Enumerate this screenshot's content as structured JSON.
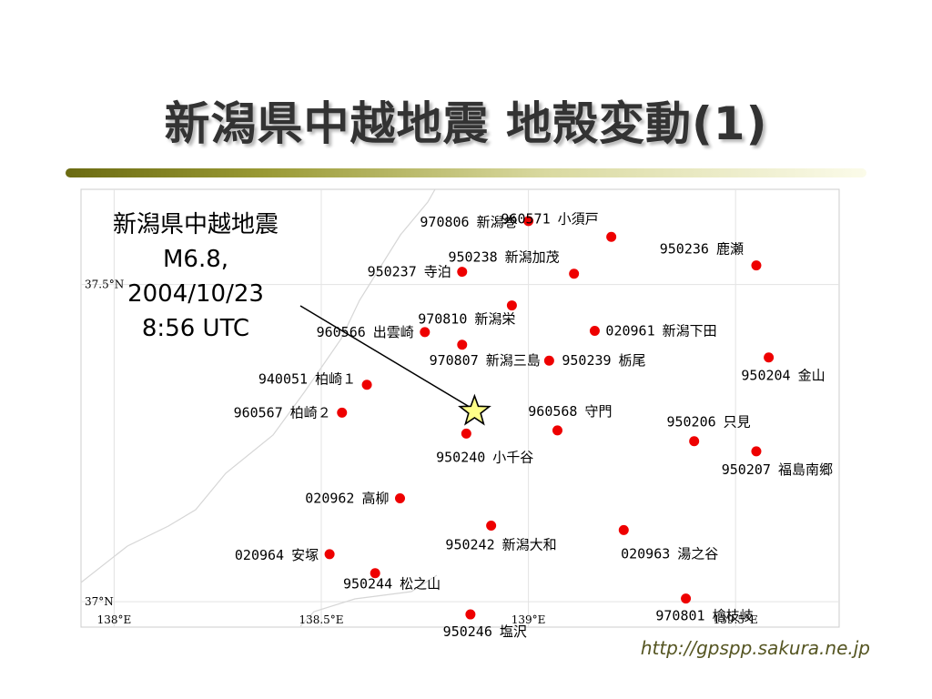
{
  "slide": {
    "title": "新潟県中越地震 地殻変動(1)",
    "source_url": "http://gpspp.sakura.ne.jp"
  },
  "quake": {
    "name": "新潟県中越地震",
    "magnitude": "M6.8,",
    "date": "2004/10/23",
    "time": "8:56 UTC",
    "lon": 138.87,
    "lat": 37.3
  },
  "map": {
    "lon_range": [
      137.92,
      139.75
    ],
    "lat_range": [
      36.96,
      37.65
    ],
    "lon_ticks": [
      {
        "value": 138.0,
        "label": "138°E"
      },
      {
        "value": 138.5,
        "label": "138.5°E"
      },
      {
        "value": 139.0,
        "label": "139°E"
      },
      {
        "value": 139.5,
        "label": "139.5°E"
      }
    ],
    "lat_ticks": [
      {
        "value": 37.5,
        "label": "37.5°N"
      },
      {
        "value": 37.0,
        "label": "37°N"
      }
    ],
    "colors": {
      "station": "#ee0000",
      "epicenter_fill": "#ffff88",
      "epicenter_stroke": "#000000"
    },
    "epicenter_icon": "star-icon"
  },
  "stations": [
    {
      "code": "970806",
      "name": "新潟巻",
      "lon": 139.0,
      "lat": 37.6
    },
    {
      "code": "960571",
      "name": "小須戸",
      "lon": 139.2,
      "lat": 37.575
    },
    {
      "code": "950236",
      "name": "鹿瀬",
      "lon": 139.55,
      "lat": 37.53
    },
    {
      "code": "950237",
      "name": "寺泊",
      "lon": 138.84,
      "lat": 37.52
    },
    {
      "code": "950238",
      "name": "新潟加茂",
      "lon": 139.11,
      "lat": 37.517
    },
    {
      "code": "970810",
      "name": "新潟栄",
      "lon": 138.96,
      "lat": 37.467
    },
    {
      "code": "960566",
      "name": "出雲崎",
      "lon": 138.75,
      "lat": 37.425
    },
    {
      "code": "020961",
      "name": "新潟下田",
      "lon": 139.16,
      "lat": 37.427
    },
    {
      "code": "970807",
      "name": "新潟三島",
      "lon": 138.84,
      "lat": 37.405
    },
    {
      "code": "950239",
      "name": "栃尾",
      "lon": 139.05,
      "lat": 37.38
    },
    {
      "code": "950204",
      "name": "金山",
      "lon": 139.58,
      "lat": 37.385
    },
    {
      "code": "940051",
      "name": "柏崎１",
      "lon": 138.61,
      "lat": 37.342
    },
    {
      "code": "960567",
      "name": "柏崎２",
      "lon": 138.55,
      "lat": 37.298
    },
    {
      "code": "960568",
      "name": "守門",
      "lon": 139.07,
      "lat": 37.27
    },
    {
      "code": "950206",
      "name": "只見",
      "lon": 139.4,
      "lat": 37.253
    },
    {
      "code": "950240",
      "name": "小千谷",
      "lon": 138.85,
      "lat": 37.265
    },
    {
      "code": "950207",
      "name": "福島南郷",
      "lon": 139.55,
      "lat": 37.237
    },
    {
      "code": "020962",
      "name": "高柳",
      "lon": 138.69,
      "lat": 37.163
    },
    {
      "code": "950242",
      "name": "新潟大和",
      "lon": 138.91,
      "lat": 37.12
    },
    {
      "code": "020963",
      "name": "湯之谷",
      "lon": 139.23,
      "lat": 37.113
    },
    {
      "code": "020964",
      "name": "安塚",
      "lon": 138.52,
      "lat": 37.075
    },
    {
      "code": "950244",
      "name": "松之山",
      "lon": 138.63,
      "lat": 37.045
    },
    {
      "code": "970801",
      "name": "檜枝岐",
      "lon": 139.38,
      "lat": 37.005
    },
    {
      "code": "950246",
      "name": "塩沢",
      "lon": 138.86,
      "lat": 36.98
    }
  ]
}
